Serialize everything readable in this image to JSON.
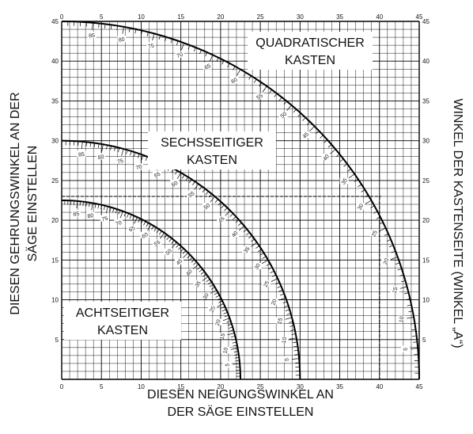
{
  "chart_data": {
    "type": "line",
    "title": "",
    "xlabel_lines": [
      "DIESEN NEIGUNGSWINKEL AN",
      "DER SÄGE EINSTELLEN"
    ],
    "ylabel_left_lines": [
      "DIESEN GEHRUNGSWINKEL AN DER",
      "SÄGE EINSTELLEN"
    ],
    "ylabel_right": "WINKEL DER KASTENSEITE (WINKEL „A“)",
    "xlim": [
      0,
      45
    ],
    "ylim": [
      0,
      45
    ],
    "x_ticks": [
      "0",
      "5",
      "10",
      "15",
      "20",
      "25",
      "30",
      "35",
      "40",
      "45"
    ],
    "y_ticks": [
      "5",
      "10",
      "15",
      "20",
      "25",
      "30",
      "35",
      "40",
      "45"
    ],
    "grid": true,
    "series": [
      {
        "name_lines": [
          "ACHTSEITIGER",
          "KASTEN"
        ],
        "radius": 22.5,
        "angle_labels": [
          "5",
          "10",
          "15",
          "20",
          "25",
          "30",
          "35",
          "40",
          "45",
          "50",
          "55",
          "60",
          "65",
          "70",
          "75",
          "80",
          "85"
        ]
      },
      {
        "name_lines": [
          "SECHSSEITIGER",
          "KASTEN"
        ],
        "radius": 30,
        "angle_labels": [
          "5",
          "10",
          "15",
          "20",
          "25",
          "30",
          "35",
          "40",
          "45",
          "50",
          "55",
          "60",
          "65",
          "70",
          "75",
          "80",
          "85"
        ]
      },
      {
        "name_lines": [
          "QUADRATISCHER",
          "KASTEN"
        ],
        "radius": 45,
        "angle_labels": [
          "5",
          "10",
          "15",
          "20",
          "25",
          "30",
          "35",
          "40",
          "45",
          "50",
          "55",
          "60",
          "65",
          "70",
          "75",
          "80",
          "85"
        ]
      }
    ],
    "example_line": {
      "x": 40,
      "y": 23
    }
  }
}
